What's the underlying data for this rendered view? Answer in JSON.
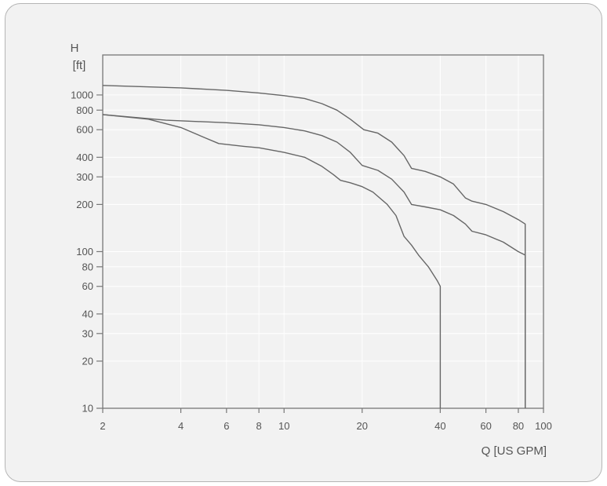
{
  "chart_data": {
    "type": "line",
    "title": "",
    "ylabel_line1": "H",
    "ylabel_line2": "[ft]",
    "xlabel": "Q [US  GPM]",
    "x_scale": "log",
    "y_scale": "log",
    "xlim": [
      2,
      100
    ],
    "ylim": [
      10,
      1800
    ],
    "grid": true,
    "x_ticks": [
      {
        "value": 2,
        "label": "2"
      },
      {
        "value": 4,
        "label": "4"
      },
      {
        "value": 6,
        "label": "6"
      },
      {
        "value": 8,
        "label": "8"
      },
      {
        "value": 10,
        "label": "10"
      },
      {
        "value": 20,
        "label": "20"
      },
      {
        "value": 40,
        "label": "40"
      },
      {
        "value": 60,
        "label": "60"
      },
      {
        "value": 80,
        "label": "80"
      },
      {
        "value": 100,
        "label": "100"
      }
    ],
    "y_ticks": [
      {
        "value": 10,
        "label": "10"
      },
      {
        "value": 20,
        "label": "20"
      },
      {
        "value": 30,
        "label": "30"
      },
      {
        "value": 40,
        "label": "40"
      },
      {
        "value": 60,
        "label": "60"
      },
      {
        "value": 80,
        "label": "80"
      },
      {
        "value": 100,
        "label": "100"
      },
      {
        "value": 200,
        "label": "200"
      },
      {
        "value": 300,
        "label": "300"
      },
      {
        "value": 400,
        "label": "400"
      },
      {
        "value": 600,
        "label": "600"
      },
      {
        "value": 800,
        "label": "800"
      },
      {
        "value": 1000,
        "label": "1000"
      }
    ],
    "series": [
      {
        "color": "#666666",
        "points": [
          [
            2,
            1150
          ],
          [
            4,
            1110
          ],
          [
            6,
            1070
          ],
          [
            8,
            1030
          ],
          [
            10,
            990
          ],
          [
            12,
            950
          ],
          [
            14,
            880
          ],
          [
            16,
            800
          ],
          [
            18,
            700
          ],
          [
            20.3,
            600
          ],
          [
            23,
            570
          ],
          [
            26,
            500
          ],
          [
            29,
            410
          ],
          [
            31,
            340
          ],
          [
            35,
            325
          ],
          [
            40,
            300
          ],
          [
            45,
            270
          ],
          [
            50,
            220
          ],
          [
            53,
            210
          ],
          [
            60,
            200
          ],
          [
            70,
            180
          ],
          [
            80,
            160
          ],
          [
            85,
            150
          ],
          [
            85,
            10
          ]
        ]
      },
      {
        "color": "#666666",
        "points": [
          [
            2,
            750
          ],
          [
            3.5,
            690
          ],
          [
            6,
            665
          ],
          [
            8,
            645
          ],
          [
            10,
            620
          ],
          [
            12,
            590
          ],
          [
            14,
            550
          ],
          [
            16,
            500
          ],
          [
            18,
            430
          ],
          [
            20,
            355
          ],
          [
            23,
            330
          ],
          [
            26,
            290
          ],
          [
            29,
            240
          ],
          [
            31,
            200
          ],
          [
            35,
            193
          ],
          [
            40,
            185
          ],
          [
            45,
            170
          ],
          [
            50,
            150
          ],
          [
            53,
            135
          ],
          [
            60,
            128
          ],
          [
            70,
            115
          ],
          [
            80,
            100
          ],
          [
            85,
            95
          ],
          [
            85,
            10
          ]
        ]
      },
      {
        "color": "#666666",
        "points": [
          [
            2,
            750
          ],
          [
            3,
            700
          ],
          [
            4,
            620
          ],
          [
            5,
            530
          ],
          [
            5.6,
            490
          ],
          [
            7,
            470
          ],
          [
            8,
            460
          ],
          [
            10,
            430
          ],
          [
            12,
            400
          ],
          [
            14,
            350
          ],
          [
            15.5,
            310
          ],
          [
            16.5,
            285
          ],
          [
            18,
            275
          ],
          [
            20,
            260
          ],
          [
            22,
            240
          ],
          [
            25,
            200
          ],
          [
            27,
            170
          ],
          [
            29,
            125
          ],
          [
            31,
            110
          ],
          [
            33,
            95
          ],
          [
            36,
            80
          ],
          [
            39,
            65
          ],
          [
            40,
            60
          ],
          [
            40,
            10
          ]
        ]
      }
    ]
  }
}
